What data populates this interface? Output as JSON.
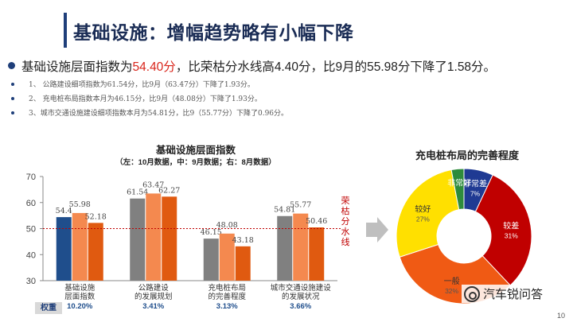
{
  "header": {
    "title": "基础设施：增幅趋势略有小幅下降"
  },
  "summary": {
    "prefix": "基础设施层面指数为",
    "highlight": "54.40分",
    "suffix": "，比荣枯分水线高4.40分，比9月的55.98分下降了1.58分。"
  },
  "details": [
    "1、 公路建设细项指数为61.54分，比9月（63.47分）下降了1.93分。",
    "2、 充电桩布局指数本月为46.15分，比9月（48.08分）下降了1.93分。",
    "3、城市交通设施建设细项指数本月为54.81分，比9（55.77分）下降了0.96分。"
  ],
  "page_number": "10",
  "watermark": "汽车锐问答",
  "weight_label": "权重",
  "colors": {
    "oct": "#1f4e8c",
    "sep": "#f4894f",
    "aug": "#e05a10",
    "gray": "#808080",
    "threshold": "#c00000",
    "title": "#1a2c55"
  },
  "chart_data": [
    {
      "type": "bar",
      "title": "基础设施层面指数",
      "subtitle": "（左：10月数据，中：9月数据；右：8月数据）",
      "ylim": [
        30,
        70
      ],
      "yticks": [
        "30",
        "40",
        "50",
        "60",
        "70"
      ],
      "threshold": {
        "value": 50,
        "label": "荣枯分水线"
      },
      "categories": [
        {
          "name": [
            "基础设施",
            "层面指数"
          ],
          "weight": "10.20%"
        },
        {
          "name": [
            "公路建设",
            "的发展规划"
          ],
          "weight": "3.41%"
        },
        {
          "name": [
            "充电桩布局",
            "的完善程度"
          ],
          "weight": "3.13%"
        },
        {
          "name": [
            "城市交通设施建设",
            "的发展状况"
          ],
          "weight": "3.66%"
        }
      ],
      "values": [
        [
          54.4,
          55.98,
          52.18
        ],
        [
          61.54,
          63.47,
          62.27
        ],
        [
          46.15,
          48.08,
          43.18
        ],
        [
          54.81,
          55.77,
          50.46
        ]
      ],
      "labels": [
        [
          "54.4",
          "55.98",
          "52.18"
        ],
        [
          "61.54",
          "63.47",
          "62.27"
        ],
        [
          "46.15",
          "48.08",
          "43.18"
        ],
        [
          "54.81",
          "55.77",
          "50.46"
        ]
      ]
    },
    {
      "type": "pie",
      "title": "充电桩布局的完善程度",
      "slices": [
        {
          "label": "非常差",
          "value": 7,
          "pct": "7%",
          "color": "#1f3a93"
        },
        {
          "label": "较差",
          "value": 31,
          "pct": "31%",
          "color": "#c00000"
        },
        {
          "label": "一般",
          "value": 32,
          "pct": "32%",
          "color": "#f05a14"
        },
        {
          "label": "较好",
          "value": 27,
          "pct": "27%",
          "color": "#ffe000"
        },
        {
          "label": "非常好",
          "value": 3,
          "pct": "",
          "color": "#2e8b3c"
        }
      ]
    }
  ]
}
